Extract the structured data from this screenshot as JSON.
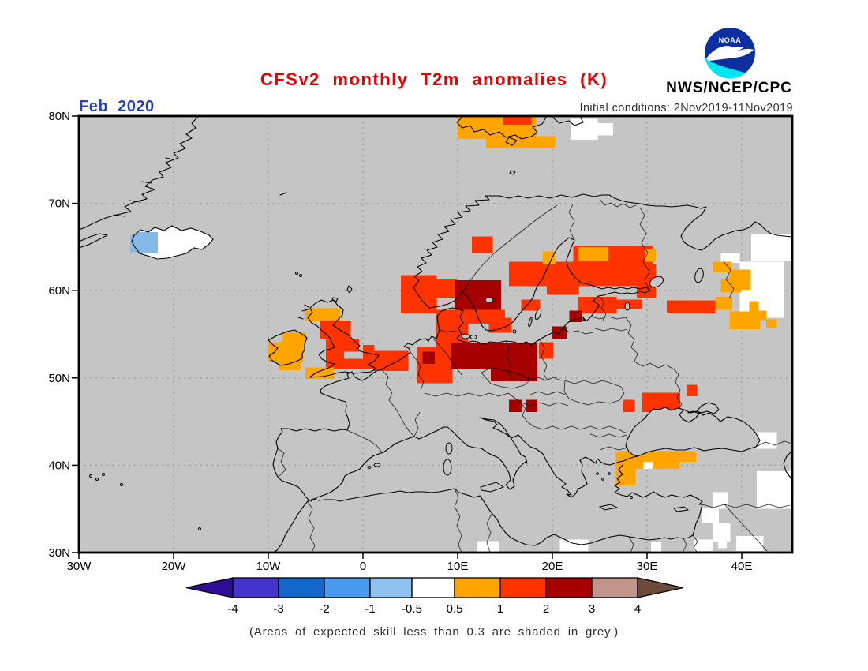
{
  "title": {
    "text": "CFSv2 monthly T2m anomalies (K)",
    "color": "#E60000"
  },
  "header": {
    "org": "NWS/NCEP/CPC",
    "logo": "noaa-logo",
    "logo_text": "NOAA",
    "initial_conditions": "Initial conditions: 2Nov2019-11Nov2019"
  },
  "map": {
    "date_label": "Feb 2020",
    "date_color": "#2442C8",
    "background": "#C5C5C5",
    "grid_color": "#999999",
    "lat_ticks": [
      {
        "label": "80N",
        "value": 80
      },
      {
        "label": "70N",
        "value": 70
      },
      {
        "label": "60N",
        "value": 60
      },
      {
        "label": "50N",
        "value": 50
      },
      {
        "label": "40N",
        "value": 40
      },
      {
        "label": "30N",
        "value": 30
      }
    ],
    "lon_ticks": [
      {
        "label": "30W",
        "value": -30
      },
      {
        "label": "20W",
        "value": -20
      },
      {
        "label": "10W",
        "value": -10
      },
      {
        "label": "0",
        "value": 0
      },
      {
        "label": "10E",
        "value": 10
      },
      {
        "label": "20E",
        "value": 20
      },
      {
        "label": "30E",
        "value": 30
      },
      {
        "label": "40E",
        "value": 40
      }
    ]
  },
  "colorbar": {
    "tick_labels": [
      "-4",
      "-3",
      "-2",
      "-1",
      "-0.5",
      "0.5",
      "1",
      "2",
      "3",
      "4"
    ],
    "segment_colors": [
      "#4433CC",
      "#1566CB",
      "#4A9BEE",
      "#90C2F0",
      "#FFFFFF",
      "#FFA500",
      "#FF3300",
      "#A60000",
      "#C2948C"
    ],
    "left_arrow_color": "#2C0D96",
    "right_arrow_color": "#6C4A3C"
  },
  "caption": {
    "text": "(Areas of expected skill less than 0.3 are shaded in grey.)"
  },
  "chart_data": {
    "type": "heatmap",
    "title": "CFSv2 monthly T2m anomalies (K)",
    "subtitle": "Initial conditions: 2Nov2019-11Nov2019",
    "forecast_month": "Feb 2020",
    "units": "K",
    "lon_range": [
      -30,
      45.3
    ],
    "lat_range": [
      30,
      80
    ],
    "levels": [
      -4,
      -3,
      -2,
      -1,
      -0.5,
      0.5,
      1,
      2,
      3,
      4
    ],
    "value_bands": {
      "b": "-1 to -0.5",
      "w": "-0.5 to 0.5",
      "o": "0.5 to 1",
      "r": "1 to 2",
      "d": "2 to 3"
    },
    "cell_colors": {
      "o": "#FFA500",
      "r": "#FF3300",
      "d": "#A60000",
      "w": "#FFFFFF",
      "b": "#85B9EA"
    },
    "cells": [
      [
        "b",
        -24.6,
        64.4,
        3.1,
        2.0
      ],
      [
        "o",
        10,
        77.4,
        8.3,
        2.6
      ],
      [
        "o",
        13,
        76.3,
        7.3,
        1.4
      ],
      [
        "r",
        14.8,
        79,
        3,
        1.0
      ],
      [
        "w",
        21.9,
        77.3,
        2.9,
        2.4
      ],
      [
        "w",
        24.8,
        77.8,
        1.6,
        1.4
      ],
      [
        "w",
        37.8,
        63.2,
        2,
        1.1
      ],
      [
        "w",
        41,
        63.4,
        4.4,
        3.1
      ],
      [
        "w",
        39.8,
        56.9,
        4.6,
        6.4
      ],
      [
        "o",
        36.9,
        62.1,
        2,
        1.2
      ],
      [
        "o",
        38.7,
        60.1,
        2.2,
        2.3
      ],
      [
        "o",
        37.8,
        59.8,
        2.1,
        1.5
      ],
      [
        "o",
        37.2,
        57.8,
        1.8,
        1.5
      ],
      [
        "o",
        40.8,
        57.6,
        1,
        1.2
      ],
      [
        "o",
        41.7,
        56.6,
        0.9,
        1.1
      ],
      [
        "o",
        42.6,
        55.7,
        1.1,
        1.0
      ],
      [
        "o",
        38.7,
        55.6,
        3.2,
        2.0
      ],
      [
        "r",
        32.1,
        57.4,
        5.1,
        1.5
      ],
      [
        "r",
        4,
        57.4,
        3.8,
        4.4
      ],
      [
        "r",
        7.7,
        59.2,
        2.2,
        2.1
      ],
      [
        "r",
        9.7,
        56.2,
        5.3,
        1.6
      ],
      [
        "r",
        13.3,
        55.2,
        2.4,
        1.7
      ],
      [
        "r",
        16.7,
        57.7,
        2,
        1.3
      ],
      [
        "r",
        11.5,
        64.3,
        2.2,
        1.9
      ],
      [
        "r",
        15.4,
        60.5,
        15.2,
        2.8
      ],
      [
        "r",
        22.2,
        63.3,
        8.4,
        1.8
      ],
      [
        "d",
        9.7,
        57.8,
        4.9,
        3.4
      ],
      [
        "o",
        19,
        63,
        1.3,
        1.5
      ],
      [
        "o",
        22.7,
        63.4,
        3.2,
        1.6
      ],
      [
        "o",
        29.8,
        63.3,
        1.1,
        1.5
      ],
      [
        "r",
        19.4,
        59.5,
        3.4,
        1.6
      ],
      [
        "r",
        28.9,
        59.2,
        2,
        3.8
      ],
      [
        "r",
        22.7,
        57.4,
        4.1,
        1.9
      ],
      [
        "r",
        26.7,
        57.9,
        2.8,
        1.1
      ],
      [
        "d",
        21.8,
        56.4,
        1.3,
        1.3
      ],
      [
        "r",
        7.7,
        53.5,
        3.4,
        4.3
      ],
      [
        "d",
        20,
        54.5,
        1.5,
        1.4
      ],
      [
        "r",
        18.6,
        52.2,
        1.5,
        1.9
      ],
      [
        "r",
        1.1,
        50.8,
        3.7,
        2.3
      ],
      [
        "r",
        5.7,
        49.4,
        3.7,
        4.1
      ],
      [
        "d",
        6.3,
        51.6,
        1.3,
        1.4
      ],
      [
        "d",
        9.3,
        51,
        9.1,
        3.0
      ],
      [
        "d",
        13.5,
        49.6,
        4.9,
        1.5
      ],
      [
        "d",
        15.4,
        46.1,
        1.4,
        1.4
      ],
      [
        "d",
        17.2,
        46.1,
        1.2,
        1.4
      ],
      [
        "o",
        -6.1,
        56.5,
        3.7,
        1.5
      ],
      [
        "r",
        -4.5,
        54.4,
        3.2,
        2.2
      ],
      [
        "r",
        -3.9,
        53,
        3.5,
        1.5
      ],
      [
        "r",
        -3.9,
        51,
        1.9,
        2.1
      ],
      [
        "r",
        -2.1,
        51,
        3.3,
        1.2
      ],
      [
        "r",
        0,
        52.1,
        1.2,
        1.7
      ],
      [
        "o",
        -6.1,
        49.9,
        3,
        1.3
      ],
      [
        "o",
        -10,
        51.9,
        3.7,
        2.2
      ],
      [
        "o",
        -8.6,
        54,
        2.6,
        1.2
      ],
      [
        "o",
        -8.9,
        50.9,
        2.3,
        1.1
      ],
      [
        "r",
        27.5,
        46.1,
        1.2,
        1.4
      ],
      [
        "r",
        29.4,
        46.1,
        4.1,
        2.2
      ],
      [
        "r",
        34.2,
        47.9,
        1.1,
        1.3
      ],
      [
        "o",
        26.7,
        39.6,
        6.7,
        2.0
      ],
      [
        "o",
        33.3,
        40.4,
        1.9,
        1.2
      ],
      [
        "w",
        29.6,
        39.6,
        1.0,
        0.8
      ],
      [
        "o",
        26.7,
        37.7,
        2.1,
        1.9
      ],
      [
        "w",
        36.9,
        35,
        1.7,
        1.9
      ],
      [
        "w",
        35.8,
        33.4,
        1.8,
        1.7
      ],
      [
        "w",
        36.9,
        31.2,
        1.9,
        2.2
      ],
      [
        "w",
        35,
        30.2,
        1.9,
        1.3
      ],
      [
        "w",
        38.5,
        42.9,
        2.1,
        1.7
      ],
      [
        "w",
        41.4,
        41.9,
        2.3,
        1.9
      ],
      [
        "w",
        41.6,
        35,
        3.8,
        4.3
      ],
      [
        "w",
        39.4,
        30.2,
        2.9,
        1.7
      ],
      [
        "w",
        37.5,
        30.5,
        0.9,
        1.2
      ],
      [
        "w",
        12.1,
        30,
        2.3,
        1.3
      ],
      [
        "w",
        20.8,
        30,
        3,
        1.5
      ],
      [
        "w",
        30.4,
        30,
        1.1,
        1.2
      ]
    ]
  }
}
